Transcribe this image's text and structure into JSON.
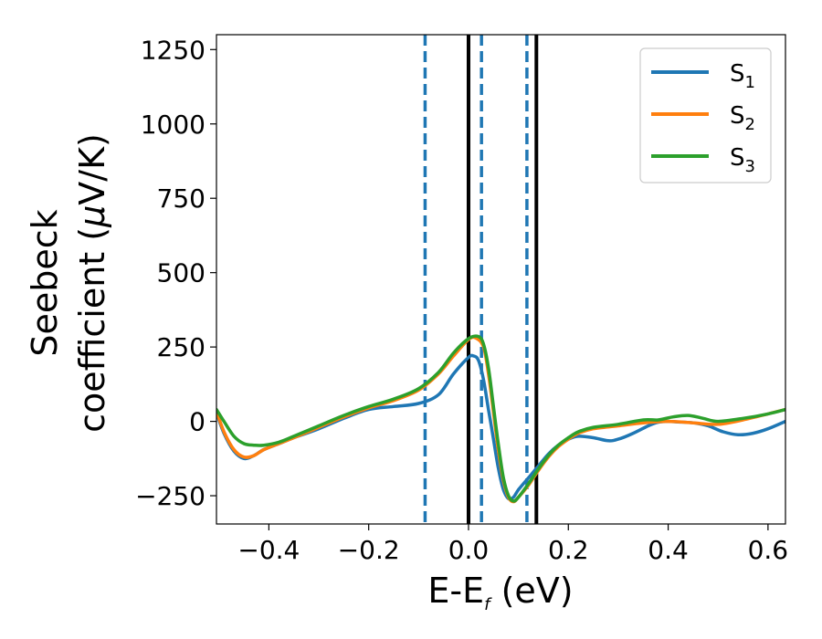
{
  "chart_data": {
    "type": "line",
    "xlabel": "E-E",
    "xlabel_sub": "f",
    "xlabel_unit": " (eV)",
    "ylabel_line1": "Seebeck",
    "ylabel_line2_pre": "coefficient  (",
    "ylabel_mu": "μ",
    "ylabel_line2_post": "V/K)",
    "xlim": [
      -0.505,
      0.635
    ],
    "ylim": [
      -345,
      1300
    ],
    "xticks": [
      -0.4,
      -0.2,
      0.0,
      0.2,
      0.4,
      0.6
    ],
    "xtick_labels": [
      "−0.4",
      "−0.2",
      "0.0",
      "0.2",
      "0.4",
      "0.6"
    ],
    "yticks": [
      -250,
      0,
      250,
      500,
      750,
      1000,
      1250
    ],
    "ytick_labels": [
      "−250",
      "0",
      "250",
      "500",
      "750",
      "1000",
      "1250"
    ],
    "grid": false,
    "legend_position": "top-right",
    "series": [
      {
        "name": "S",
        "sub": "1",
        "color": "#1f77b4",
        "x": [
          -0.505,
          -0.49,
          -0.47,
          -0.45,
          -0.43,
          -0.41,
          -0.38,
          -0.35,
          -0.3,
          -0.25,
          -0.2,
          -0.15,
          -0.1,
          -0.06,
          -0.03,
          0.0,
          0.01,
          0.02,
          0.03,
          0.04,
          0.05,
          0.06,
          0.07,
          0.08,
          0.09,
          0.1,
          0.12,
          0.14,
          0.16,
          0.18,
          0.2,
          0.22,
          0.25,
          0.28,
          0.3,
          0.33,
          0.36,
          0.38,
          0.4,
          0.42,
          0.45,
          0.48,
          0.51,
          0.54,
          0.57,
          0.6,
          0.635
        ],
        "y": [
          30,
          -40,
          -100,
          -125,
          -115,
          -95,
          -75,
          -55,
          -25,
          10,
          40,
          50,
          60,
          90,
          160,
          215,
          220,
          205,
          140,
          40,
          -60,
          -160,
          -230,
          -260,
          -255,
          -230,
          -190,
          -150,
          -110,
          -80,
          -60,
          -50,
          -55,
          -65,
          -60,
          -40,
          -15,
          -3,
          0,
          -2,
          -5,
          -15,
          -35,
          -45,
          -40,
          -25,
          0
        ]
      },
      {
        "name": "S",
        "sub": "2",
        "color": "#ff7f0e",
        "x": [
          -0.505,
          -0.49,
          -0.47,
          -0.45,
          -0.43,
          -0.41,
          -0.38,
          -0.35,
          -0.3,
          -0.25,
          -0.2,
          -0.15,
          -0.1,
          -0.06,
          -0.03,
          0.0,
          0.015,
          0.03,
          0.04,
          0.05,
          0.06,
          0.07,
          0.08,
          0.09,
          0.1,
          0.12,
          0.14,
          0.16,
          0.18,
          0.2,
          0.22,
          0.25,
          0.3,
          0.35,
          0.4,
          0.45,
          0.5,
          0.55,
          0.6,
          0.635
        ],
        "y": [
          35,
          -35,
          -95,
          -120,
          -115,
          -95,
          -75,
          -55,
          -20,
          15,
          45,
          70,
          105,
          160,
          220,
          275,
          280,
          250,
          160,
          30,
          -100,
          -200,
          -255,
          -270,
          -255,
          -215,
          -165,
          -120,
          -85,
          -60,
          -40,
          -25,
          -15,
          -5,
          0,
          -5,
          -10,
          5,
          25,
          40
        ]
      },
      {
        "name": "S",
        "sub": "3",
        "color": "#2ca02c",
        "x": [
          -0.505,
          -0.49,
          -0.47,
          -0.45,
          -0.43,
          -0.41,
          -0.38,
          -0.35,
          -0.3,
          -0.25,
          -0.2,
          -0.15,
          -0.1,
          -0.06,
          -0.03,
          0.0,
          0.02,
          0.03,
          0.04,
          0.05,
          0.06,
          0.07,
          0.08,
          0.09,
          0.1,
          0.12,
          0.14,
          0.16,
          0.18,
          0.2,
          0.22,
          0.25,
          0.3,
          0.35,
          0.38,
          0.41,
          0.44,
          0.47,
          0.5,
          0.55,
          0.6,
          0.635
        ],
        "y": [
          40,
          0,
          -50,
          -75,
          -80,
          -80,
          -70,
          -50,
          -15,
          20,
          50,
          75,
          110,
          165,
          230,
          278,
          285,
          260,
          180,
          50,
          -80,
          -190,
          -250,
          -268,
          -255,
          -210,
          -160,
          -115,
          -80,
          -55,
          -35,
          -20,
          -10,
          5,
          5,
          15,
          20,
          10,
          0,
          10,
          25,
          40
        ]
      }
    ],
    "vlines": [
      {
        "x": -0.087,
        "style": "dashed",
        "color": "#1f77b4"
      },
      {
        "x": 0.0,
        "style": "solid",
        "color": "#000000"
      },
      {
        "x": 0.026,
        "style": "dashed",
        "color": "#1f77b4"
      },
      {
        "x": 0.117,
        "style": "dashed",
        "color": "#1f77b4"
      },
      {
        "x": 0.136,
        "style": "solid",
        "color": "#000000"
      }
    ]
  }
}
